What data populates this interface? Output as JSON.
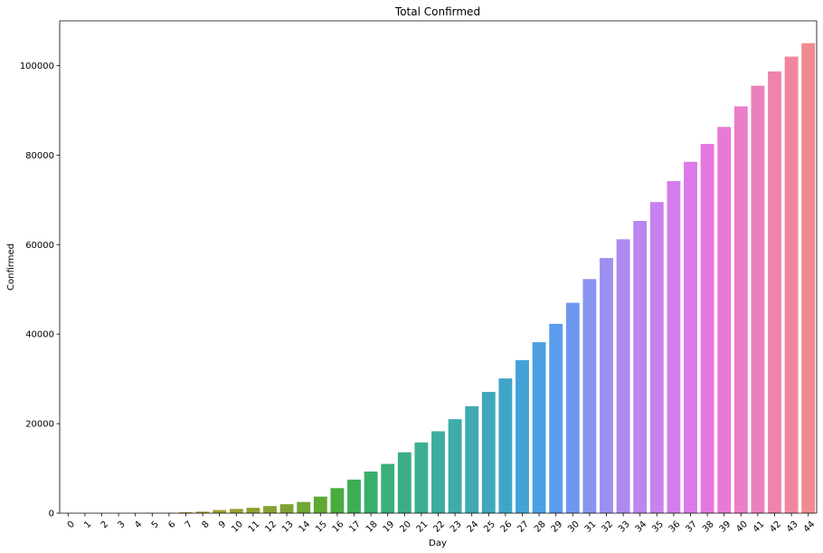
{
  "chart_data": {
    "type": "bar",
    "title": "Total Confirmed",
    "xlabel": "Day",
    "ylabel": "Confirmed",
    "ylim": [
      0,
      110000
    ],
    "yticks": [
      0,
      20000,
      40000,
      60000,
      80000,
      100000
    ],
    "grid": false,
    "legend": "none",
    "categories": [
      "0",
      "1",
      "2",
      "3",
      "4",
      "5",
      "6",
      "7",
      "8",
      "9",
      "10",
      "11",
      "12",
      "13",
      "14",
      "15",
      "16",
      "17",
      "18",
      "19",
      "20",
      "21",
      "22",
      "23",
      "24",
      "25",
      "26",
      "27",
      "28",
      "29",
      "30",
      "31",
      "32",
      "33",
      "34",
      "35",
      "36",
      "37",
      "38",
      "39",
      "40",
      "41",
      "42",
      "43",
      "44"
    ],
    "values": [
      0,
      0,
      0,
      0,
      0,
      50,
      80,
      200,
      350,
      700,
      950,
      1200,
      1600,
      2000,
      2500,
      3700,
      5600,
      7500,
      9300,
      11000,
      13600,
      15800,
      18300,
      21000,
      23900,
      27100,
      30100,
      34200,
      38200,
      42300,
      47000,
      52300,
      57000,
      61200,
      65300,
      69500,
      74200,
      78500,
      82500,
      86300,
      90900,
      95500,
      98700,
      102000,
      105000
    ],
    "colors": [
      "#f0777f",
      "#ee7d6c",
      "#eb8042",
      "#e2862c",
      "#d48d31",
      "#c69333",
      "#bc9634",
      "#b39934",
      "#a99c33",
      "#a09e32",
      "#989f32",
      "#90a132",
      "#87a232",
      "#7da432",
      "#70a632",
      "#5fa933",
      "#49ad3e",
      "#3caf56",
      "#39af69",
      "#3aaf79",
      "#3cae86",
      "#3dae92",
      "#3dad9e",
      "#3eaca9",
      "#3faab4",
      "#3fa8bf",
      "#40a6c9",
      "#43a3d6",
      "#4ca0e2",
      "#5a9ced",
      "#6e98f0",
      "#8894ef",
      "#9b90f0",
      "#ad8aef",
      "#bc85ef",
      "#c881ee",
      "#d37ded",
      "#dc78e9",
      "#e478df",
      "#e87ad5",
      "#eb7dc9",
      "#ec80bc",
      "#ee83af",
      "#ef86a0",
      "#f08a8e"
    ]
  }
}
